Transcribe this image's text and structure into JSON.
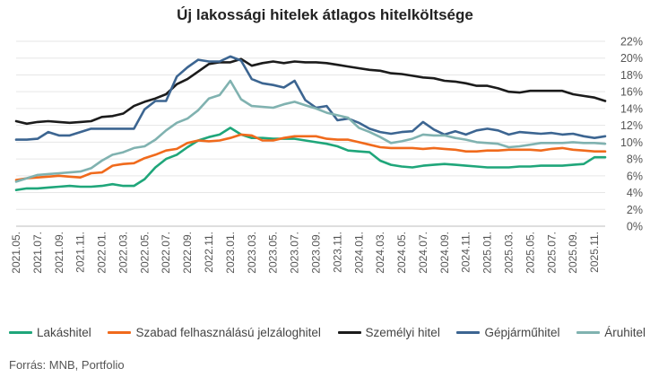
{
  "chart_data": {
    "type": "line",
    "title": "Új lakossági hitelek átlagos hitelköltsége",
    "xlabel": "",
    "ylabel": "",
    "ylim": [
      0,
      22
    ],
    "yticks": [
      "0%",
      "2%",
      "4%",
      "6%",
      "8%",
      "10%",
      "12%",
      "14%",
      "16%",
      "18%",
      "20%",
      "22%"
    ],
    "y_axis_position": "right",
    "grid": true,
    "legend": "bottom",
    "x": [
      "2021.05.",
      "2021.06.",
      "2021.07.",
      "2021.08.",
      "2021.09.",
      "2021.10.",
      "2021.11.",
      "2021.12.",
      "2022.01.",
      "2022.02.",
      "2022.03.",
      "2022.04.",
      "2022.05.",
      "2022.06.",
      "2022.07.",
      "2022.08.",
      "2022.09.",
      "2022.10.",
      "2022.11.",
      "2022.12.",
      "2023.01.",
      "2023.02.",
      "2023.03.",
      "2023.04.",
      "2023.05.",
      "2023.06.",
      "2023.07.",
      "2023.08.",
      "2023.09.",
      "2023.10.",
      "2023.11.",
      "2023.12.",
      "2024.01.",
      "2024.02.",
      "2024.03.",
      "2024.04.",
      "2024.05.",
      "2024.06.",
      "2024.07.",
      "2024.08.",
      "2024.09.",
      "2024.10.",
      "2024.11.",
      "2024.12.",
      "2025.01.",
      "2025.02.",
      "2025.03.",
      "2025.04.",
      "2025.05.",
      "2025.06.",
      "2025.07.",
      "2025.08.",
      "2025.09.",
      "2025.10.",
      "2025.11.",
      "2025.12."
    ],
    "x_tick_labels": [
      "2021.05.",
      "2021.07.",
      "2021.09.",
      "2021.11.",
      "2022.01.",
      "2022.03.",
      "2022.05.",
      "2022.07.",
      "2022.09.",
      "2022.11.",
      "2023.01.",
      "2023.03.",
      "2023.05.",
      "2023.07.",
      "2023.09.",
      "2023.11.",
      "2024.01.",
      "2024.03.",
      "2024.05.",
      "2024.07.",
      "2024.09.",
      "2024.11.",
      "2025.01.",
      "2025.03.",
      "2025.05.",
      "2025.07.",
      "2025.09.",
      "2025.11."
    ],
    "series": [
      {
        "name": "Lakáshitel",
        "color": "#1fa67a",
        "values": [
          4.3,
          4.5,
          4.5,
          4.6,
          4.7,
          4.8,
          4.7,
          4.7,
          4.8,
          5.0,
          4.8,
          4.8,
          5.6,
          7.0,
          8.0,
          8.5,
          9.4,
          10.2,
          10.6,
          10.9,
          11.7,
          10.9,
          10.5,
          10.5,
          10.4,
          10.4,
          10.4,
          10.2,
          10.0,
          9.8,
          9.5,
          9.0,
          8.9,
          8.8,
          7.8,
          7.3,
          7.1,
          7.0,
          7.2,
          7.3,
          7.4,
          7.3,
          7.2,
          7.1,
          7.0,
          7.0,
          7.0,
          7.1,
          7.1,
          7.2,
          7.2,
          7.2,
          7.3,
          7.4,
          8.2,
          8.2
        ]
      },
      {
        "name": "Szabad felhasználású jelzáloghitel",
        "color": "#f06a1c",
        "values": [
          5.5,
          5.7,
          5.8,
          5.9,
          6.0,
          5.9,
          5.8,
          6.3,
          6.4,
          7.2,
          7.4,
          7.5,
          8.1,
          8.5,
          9.0,
          9.2,
          9.9,
          10.2,
          10.1,
          10.2,
          10.5,
          10.9,
          10.8,
          10.2,
          10.2,
          10.5,
          10.7,
          10.7,
          10.7,
          10.4,
          10.3,
          10.3,
          10.0,
          9.7,
          9.4,
          9.3,
          9.3,
          9.3,
          9.2,
          9.3,
          9.2,
          9.1,
          8.9,
          8.9,
          9.0,
          9.0,
          9.1,
          9.1,
          9.1,
          9.0,
          9.2,
          9.3,
          9.1,
          9.0,
          8.9,
          8.9
        ]
      },
      {
        "name": "Személyi hitel",
        "color": "#1b1b1b",
        "values": [
          12.5,
          12.2,
          12.4,
          12.5,
          12.4,
          12.3,
          12.4,
          12.5,
          13.0,
          13.1,
          13.4,
          14.3,
          14.8,
          15.2,
          15.7,
          16.9,
          17.5,
          18.4,
          19.3,
          19.5,
          19.5,
          19.9,
          19.1,
          19.4,
          19.6,
          19.4,
          19.6,
          19.5,
          19.5,
          19.4,
          19.2,
          19.0,
          18.8,
          18.6,
          18.5,
          18.2,
          18.1,
          17.9,
          17.7,
          17.6,
          17.3,
          17.2,
          17.0,
          16.7,
          16.7,
          16.4,
          16.0,
          15.9,
          16.1,
          16.1,
          16.1,
          16.1,
          15.7,
          15.5,
          15.3,
          14.9
        ]
      },
      {
        "name": "Gépjárműhitel",
        "color": "#3c6591",
        "values": [
          10.3,
          10.3,
          10.4,
          11.2,
          10.8,
          10.8,
          11.2,
          11.6,
          11.6,
          11.6,
          11.6,
          11.6,
          13.9,
          14.9,
          14.9,
          17.8,
          18.9,
          19.8,
          19.6,
          19.6,
          20.2,
          19.7,
          17.5,
          17.0,
          16.8,
          16.5,
          17.3,
          15.0,
          14.1,
          14.3,
          12.6,
          12.8,
          12.3,
          11.6,
          11.2,
          11.0,
          11.2,
          11.3,
          12.4,
          11.5,
          10.9,
          11.3,
          10.9,
          11.4,
          11.6,
          11.4,
          10.9,
          11.2,
          11.1,
          11.0,
          11.1,
          10.9,
          11.0,
          10.7,
          10.5,
          10.7
        ]
      },
      {
        "name": "Áruhitel",
        "color": "#80b2b0",
        "values": [
          5.3,
          5.7,
          6.1,
          6.2,
          6.3,
          6.4,
          6.5,
          6.9,
          7.8,
          8.5,
          8.8,
          9.3,
          9.5,
          10.3,
          11.4,
          12.3,
          12.8,
          13.8,
          15.2,
          15.6,
          17.3,
          15.1,
          14.3,
          14.2,
          14.1,
          14.5,
          14.8,
          14.4,
          14.0,
          13.5,
          13.2,
          12.9,
          11.7,
          11.2,
          10.6,
          9.9,
          10.1,
          10.4,
          10.9,
          10.8,
          10.8,
          10.5,
          10.3,
          10.0,
          9.9,
          9.8,
          9.4,
          9.5,
          9.7,
          9.9,
          9.9,
          9.9,
          10.0,
          9.9,
          9.9,
          9.8
        ]
      }
    ]
  },
  "source": "Forrás: MNB, Portfolio"
}
